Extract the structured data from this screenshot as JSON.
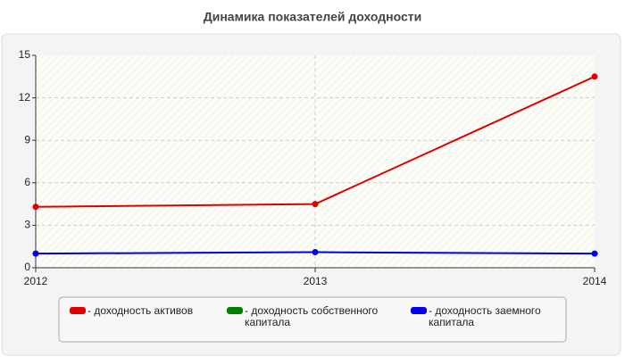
{
  "chart_data": {
    "type": "line",
    "title": "Динамика показателей доходности",
    "categories": [
      "2012",
      "2013",
      "2014"
    ],
    "series": [
      {
        "name": "- доходность активов",
        "color": "#dd0000",
        "values": [
          4.3,
          4.5,
          13.5
        ]
      },
      {
        "name": "- доходность собственного капитала",
        "color": "#008000",
        "values": [
          null,
          null,
          null
        ]
      },
      {
        "name": "- доходность заемного капитала",
        "color": "#0000ee",
        "values": [
          1.0,
          1.1,
          1.0
        ]
      }
    ],
    "ylim": [
      0,
      15
    ],
    "yticks": [
      0,
      3,
      6,
      9,
      12,
      15
    ],
    "grid": true
  }
}
